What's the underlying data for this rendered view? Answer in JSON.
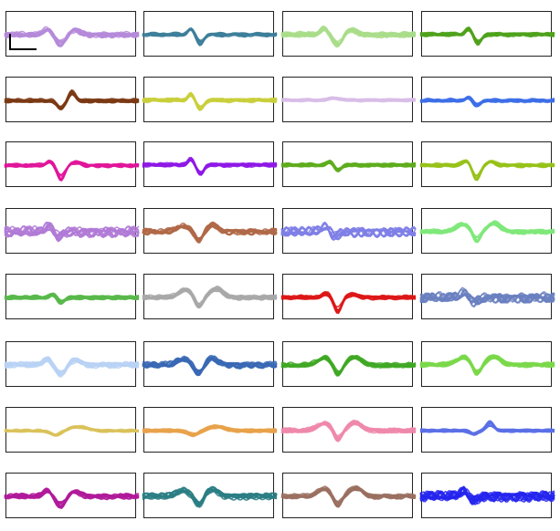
{
  "panels": [
    {
      "color": "#b58ad9",
      "shape": "spike-wide"
    },
    {
      "color": "#3d7f9a",
      "shape": "spike-narrow"
    },
    {
      "color": "#a9dd8a",
      "shape": "spike-wide"
    },
    {
      "color": "#4fa21c",
      "shape": "spike-narrow"
    },
    {
      "color": "#7a3a14",
      "shape": "biphasic"
    },
    {
      "color": "#c9cf3b",
      "shape": "spike-narrow"
    },
    {
      "color": "#d8bde8",
      "shape": "flat"
    },
    {
      "color": "#3d6ee8",
      "shape": "spike-small"
    },
    {
      "color": "#e0159a",
      "shape": "spike-deep"
    },
    {
      "color": "#8e19e6",
      "shape": "spike-narrow"
    },
    {
      "color": "#5eac1c",
      "shape": "spike-small"
    },
    {
      "color": "#96c21a",
      "shape": "spike-deep"
    },
    {
      "color": "#b07ad6",
      "shape": "noisy"
    },
    {
      "color": "#b06848",
      "shape": "hump"
    },
    {
      "color": "#7f7fe6",
      "shape": "noisy"
    },
    {
      "color": "#7fe87a",
      "shape": "wave"
    },
    {
      "color": "#58b84a",
      "shape": "spike-small"
    },
    {
      "color": "#a8a8a8",
      "shape": "wave"
    },
    {
      "color": "#dd1818",
      "shape": "spike-deep"
    },
    {
      "color": "#6a80c0",
      "shape": "noisy"
    },
    {
      "color": "#b9d2f5",
      "shape": "spike-wide"
    },
    {
      "color": "#3a68b4",
      "shape": "hump"
    },
    {
      "color": "#3fa824",
      "shape": "wave"
    },
    {
      "color": "#7ad84a",
      "shape": "wave"
    },
    {
      "color": "#d9c25a",
      "shape": "slow"
    },
    {
      "color": "#e8a24a",
      "shape": "slow"
    },
    {
      "color": "#ee88aa",
      "shape": "wave"
    },
    {
      "color": "#5a70e6",
      "shape": "sparse"
    },
    {
      "color": "#b01a9a",
      "shape": "spike-wide"
    },
    {
      "color": "#2a7e84",
      "shape": "hump"
    },
    {
      "color": "#9a7060",
      "shape": "wave"
    },
    {
      "color": "#2424ee",
      "shape": "noisy"
    }
  ]
}
